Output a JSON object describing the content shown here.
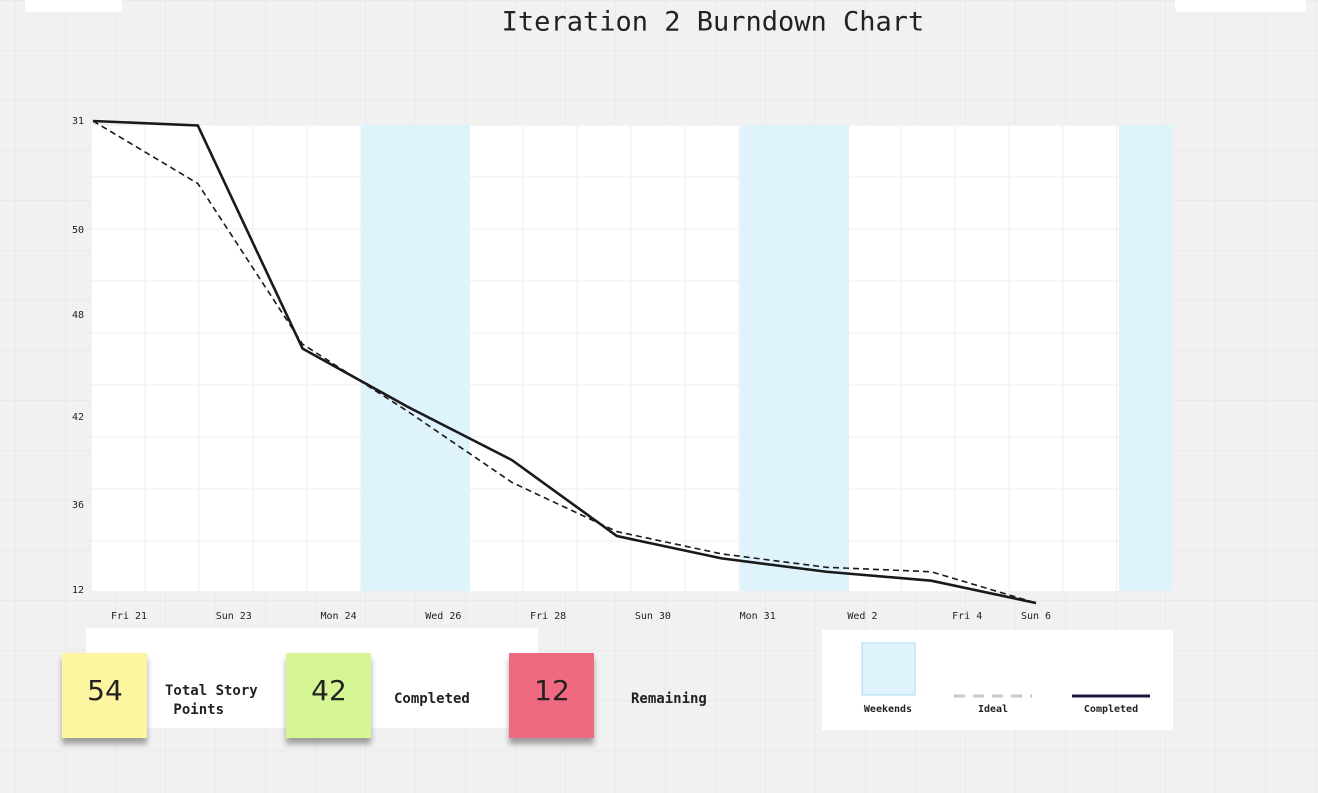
{
  "chart_data": {
    "type": "line",
    "title": "Iteration 2 Burndown Chart",
    "categories": [
      "Fri 21",
      "Sun 23",
      "Mon 24",
      "Wed 26",
      "Fri 28",
      "Sun 30",
      "Mon 31",
      "Wed 2",
      "Fri 4",
      "Sun 6"
    ],
    "y_labels": [
      "31",
      "50",
      "48",
      "42",
      "36",
      "12"
    ],
    "ylim": [
      0,
      54
    ],
    "bands_label": "Weekends",
    "series": [
      {
        "name": "Ideal",
        "color": "#1a1a1a",
        "dashed": true,
        "values": [
          54,
          47,
          29,
          21.5,
          13.5,
          8,
          5.5,
          4,
          3.5,
          0
        ]
      },
      {
        "name": "Completed",
        "color": "#1a1a1a",
        "dashed": false,
        "values": [
          54,
          53.5,
          28.5,
          22,
          16,
          7.5,
          5,
          3.5,
          2.5,
          0
        ]
      }
    ]
  },
  "summary": [
    {
      "value": "54",
      "label": "Total Story Points"
    },
    {
      "value": "42",
      "label": "Completed"
    },
    {
      "value": "12",
      "label": "Remaining"
    }
  ]
}
